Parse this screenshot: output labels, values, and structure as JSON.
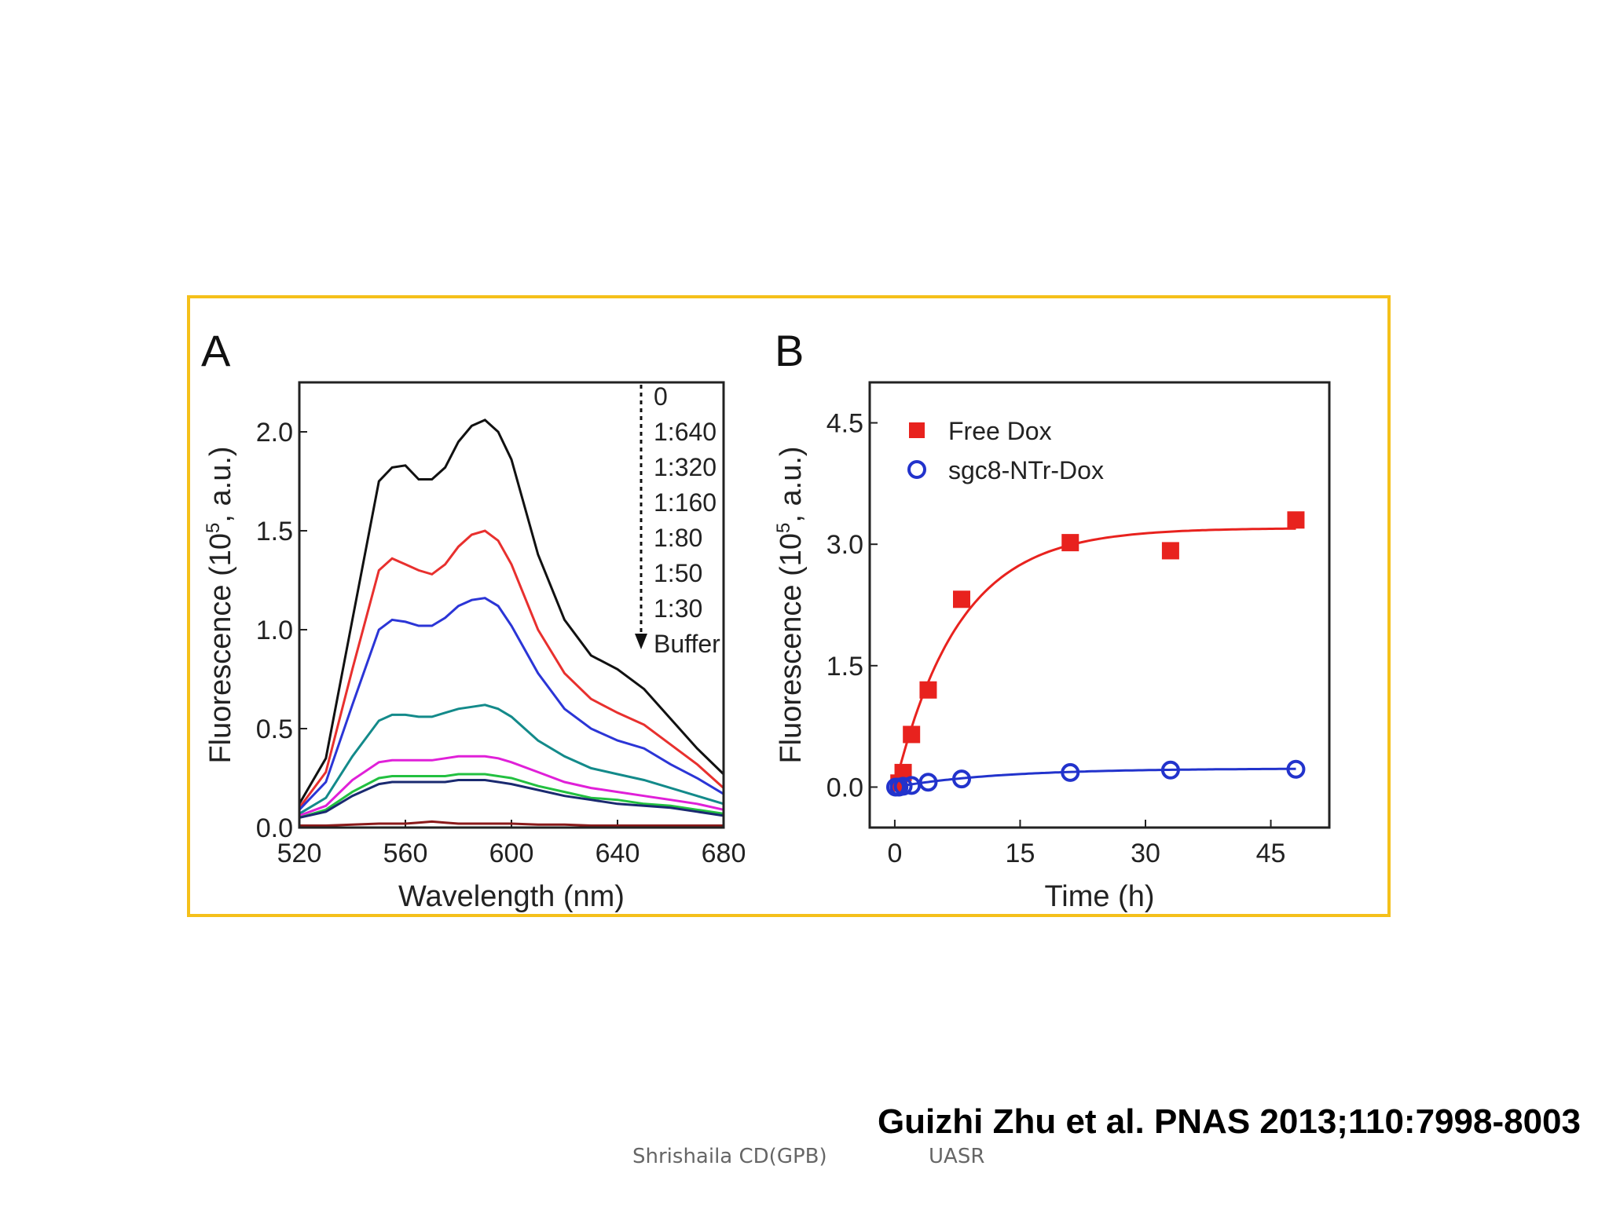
{
  "citation": "Guizhi Zhu et al. PNAS 2013;110:7998-8003",
  "footer": {
    "author": "Shrishaila CD(GPB)",
    "institution": "UASR"
  },
  "colors": {
    "frame": "#f5c01a"
  },
  "chart_data": [
    {
      "panel": "A",
      "type": "line",
      "xlabel": "Wavelength (nm)",
      "ylabel_parts": [
        "Fluorescence (10",
        "5",
        ", a.u.)"
      ],
      "xlim": [
        520,
        680
      ],
      "ylim": [
        0,
        2.25
      ],
      "xticks": [
        520,
        560,
        600,
        640,
        680
      ],
      "yticks": [
        0.0,
        0.5,
        1.0,
        1.5,
        2.0
      ],
      "ytick_labels": [
        "0.0",
        "0.5",
        "1.0",
        "1.5",
        "2.0"
      ],
      "legend_title_arrow": true,
      "legend": [
        "0",
        "1:640",
        "1:320",
        "1:160",
        "1:80",
        "1:50",
        "1:30",
        "Buffer"
      ],
      "x": [
        520,
        530,
        540,
        550,
        555,
        560,
        565,
        570,
        575,
        580,
        585,
        590,
        595,
        600,
        610,
        620,
        630,
        640,
        650,
        660,
        670,
        680
      ],
      "series": [
        {
          "name": "0",
          "color": "#111111",
          "values": [
            0.12,
            0.35,
            1.05,
            1.75,
            1.82,
            1.83,
            1.76,
            1.76,
            1.82,
            1.95,
            2.03,
            2.06,
            2.0,
            1.86,
            1.38,
            1.05,
            0.87,
            0.8,
            0.7,
            0.55,
            0.4,
            0.27
          ]
        },
        {
          "name": "1:640",
          "color": "#e8302e",
          "values": [
            0.1,
            0.28,
            0.8,
            1.3,
            1.36,
            1.33,
            1.3,
            1.28,
            1.33,
            1.42,
            1.48,
            1.5,
            1.45,
            1.33,
            1.0,
            0.78,
            0.65,
            0.58,
            0.52,
            0.42,
            0.32,
            0.2
          ]
        },
        {
          "name": "1:320",
          "color": "#2b35d6",
          "values": [
            0.09,
            0.23,
            0.62,
            1.0,
            1.05,
            1.04,
            1.02,
            1.02,
            1.06,
            1.12,
            1.15,
            1.16,
            1.12,
            1.02,
            0.78,
            0.6,
            0.5,
            0.44,
            0.4,
            0.32,
            0.25,
            0.17
          ]
        },
        {
          "name": "1:160",
          "color": "#138a8a",
          "values": [
            0.07,
            0.15,
            0.36,
            0.54,
            0.57,
            0.57,
            0.56,
            0.56,
            0.58,
            0.6,
            0.61,
            0.62,
            0.6,
            0.56,
            0.44,
            0.36,
            0.3,
            0.27,
            0.24,
            0.2,
            0.16,
            0.12
          ]
        },
        {
          "name": "1:80",
          "color": "#e020d8",
          "values": [
            0.06,
            0.11,
            0.24,
            0.33,
            0.34,
            0.34,
            0.34,
            0.34,
            0.35,
            0.36,
            0.36,
            0.36,
            0.35,
            0.33,
            0.28,
            0.23,
            0.2,
            0.18,
            0.16,
            0.14,
            0.12,
            0.09
          ]
        },
        {
          "name": "1:50",
          "color": "#22c040",
          "values": [
            0.05,
            0.09,
            0.18,
            0.25,
            0.26,
            0.26,
            0.26,
            0.26,
            0.26,
            0.27,
            0.27,
            0.27,
            0.26,
            0.25,
            0.21,
            0.18,
            0.15,
            0.14,
            0.12,
            0.11,
            0.09,
            0.07
          ]
        },
        {
          "name": "1:30",
          "color": "#1a2a70",
          "values": [
            0.05,
            0.08,
            0.16,
            0.22,
            0.23,
            0.23,
            0.23,
            0.23,
            0.23,
            0.24,
            0.24,
            0.24,
            0.23,
            0.22,
            0.19,
            0.16,
            0.14,
            0.12,
            0.11,
            0.1,
            0.08,
            0.06
          ]
        },
        {
          "name": "Buffer",
          "color": "#8a1a1a",
          "values": [
            0.01,
            0.01,
            0.015,
            0.02,
            0.02,
            0.02,
            0.025,
            0.03,
            0.025,
            0.02,
            0.02,
            0.02,
            0.02,
            0.02,
            0.015,
            0.015,
            0.01,
            0.01,
            0.01,
            0.01,
            0.01,
            0.01
          ]
        }
      ]
    },
    {
      "panel": "B",
      "type": "scatter",
      "xlabel": "Time (h)",
      "ylabel_parts": [
        "Fluorescence (10",
        "5",
        ", a.u.)"
      ],
      "xlim": [
        -3,
        52
      ],
      "ylim": [
        -0.5,
        5.0
      ],
      "xticks": [
        0,
        15,
        30,
        45
      ],
      "yticks": [
        0.0,
        1.5,
        3.0,
        4.5
      ],
      "ytick_labels": [
        "0.0",
        "1.5",
        "3.0",
        "4.5"
      ],
      "legend_position": "top-left",
      "series": [
        {
          "name": "Free Dox",
          "marker": "square-filled",
          "color": "#e8221e",
          "x": [
            0.5,
            1,
            2,
            4,
            8,
            21,
            33,
            48
          ],
          "y": [
            0.05,
            0.18,
            0.65,
            1.2,
            2.32,
            3.02,
            2.92,
            3.3
          ],
          "fit": {
            "model": "1-exp",
            "A": 3.2,
            "k": 0.13
          }
        },
        {
          "name": "sgc8-NTr-Dox",
          "marker": "circle-open",
          "color": "#2233cc",
          "x": [
            0.1,
            0.5,
            1,
            2,
            4,
            8,
            21,
            33,
            48
          ],
          "y": [
            0.0,
            0.0,
            0.01,
            0.02,
            0.06,
            0.1,
            0.18,
            0.21,
            0.22
          ],
          "fit": {
            "model": "1-exp",
            "A": 0.23,
            "k": 0.08
          }
        }
      ]
    }
  ]
}
